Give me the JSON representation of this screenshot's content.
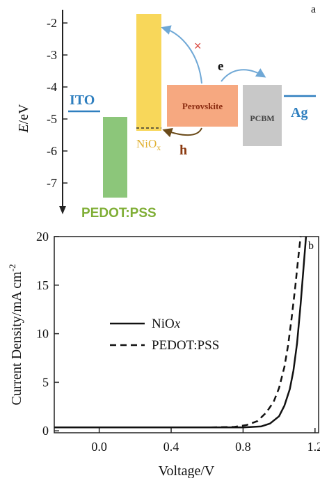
{
  "chart_data": [
    {
      "type": "energy-level-diagram",
      "panel_label": "a",
      "ylabel_prefix": "E",
      "ylabel_suffix": "/eV",
      "yticks": [
        -2,
        -3,
        -4,
        -5,
        -6,
        -7
      ],
      "ylim": [
        -7.8,
        -1.6
      ],
      "levels": [
        {
          "name": "ITO",
          "energy": -4.8,
          "color": "#2f7fbf"
        },
        {
          "name": "PEDOT:PSS",
          "top": -5.0,
          "bottom": -7.45,
          "color": "#8cc67a",
          "label_color": "#7fae35"
        },
        {
          "name": "NiO",
          "subscript": "x",
          "top": -1.75,
          "bottom": -5.3,
          "color": "#f8d75a",
          "label_color": "#e0b030",
          "dashed_level": -5.4
        },
        {
          "name": "Perovskite",
          "top": -3.95,
          "bottom": -5.25,
          "color": "#f6a880",
          "label_color": "#8b2b10"
        },
        {
          "name": "PCBM",
          "top": -3.9,
          "bottom": -5.85,
          "color": "#c8c8c8",
          "label_color": "#444444"
        },
        {
          "name": "Ag",
          "energy": -4.3,
          "color": "#2f7fbf"
        }
      ],
      "annotations": [
        {
          "text": "×",
          "color": "#d9463e"
        },
        {
          "text": "e",
          "color": "#111111"
        },
        {
          "text": "h",
          "color": "#8b3a10"
        }
      ]
    },
    {
      "type": "line",
      "panel_label": "b",
      "xlabel": "Voltage/V",
      "ylabel": "Current Density/mA cm",
      "ylabel_sup": "-2",
      "xlim": [
        -0.25,
        1.22
      ],
      "ylim": [
        -0.2,
        20
      ],
      "xticks": [
        "0.0",
        "0.4",
        "0.8",
        "1.2"
      ],
      "xtick_values": [
        0.0,
        0.4,
        0.8,
        1.2
      ],
      "yticks": [
        "0",
        "5",
        "10",
        "15",
        "20"
      ],
      "ytick_values": [
        0,
        5,
        10,
        15,
        20
      ],
      "series": [
        {
          "name": "NiOx",
          "name_main": "NiO",
          "name_italic": "x",
          "style": "solid",
          "x": [
            -0.25,
            0.6,
            0.8,
            0.9,
            0.95,
            1.0,
            1.03,
            1.06,
            1.08,
            1.1,
            1.12,
            1.135,
            1.15
          ],
          "y": [
            0.35,
            0.35,
            0.35,
            0.45,
            0.75,
            1.5,
            2.6,
            4.3,
            6.2,
            9.0,
            13.0,
            16.5,
            20.0
          ]
        },
        {
          "name": "PEDOT:PSS",
          "name_main": "PEDOT:PSS",
          "style": "dashed",
          "x": [
            -0.25,
            0.6,
            0.75,
            0.82,
            0.88,
            0.93,
            0.97,
            1.0,
            1.03,
            1.05,
            1.07,
            1.09,
            1.105,
            1.12
          ],
          "y": [
            0.35,
            0.35,
            0.4,
            0.6,
            1.0,
            1.9,
            3.0,
            4.4,
            6.6,
            8.8,
            11.6,
            14.8,
            17.5,
            20.0
          ]
        }
      ]
    }
  ]
}
